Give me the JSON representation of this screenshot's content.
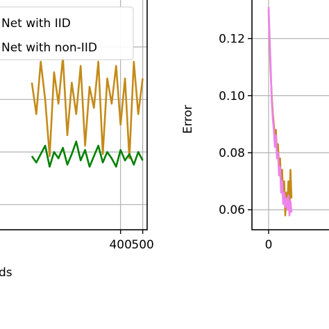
{
  "chart_data": [
    {
      "type": "line",
      "xlabel": "ds",
      "ylabel": "",
      "xlim": [
        -150,
        520
      ],
      "x_ticks": [
        400,
        500
      ],
      "grid": true,
      "legend_placement": "top-right",
      "series": [
        {
          "name": "Net with IID",
          "color": "#008000",
          "x": [
            0,
            20,
            40,
            60,
            80,
            100,
            120,
            140,
            160,
            180,
            200,
            220,
            240,
            260,
            280,
            300,
            320,
            340,
            360,
            380,
            400,
            420,
            440,
            460,
            480,
            500
          ],
          "y": [
            0.35,
            0.32,
            0.36,
            0.4,
            0.3,
            0.37,
            0.34,
            0.39,
            0.31,
            0.36,
            0.42,
            0.33,
            0.38,
            0.3,
            0.35,
            0.4,
            0.32,
            0.37,
            0.34,
            0.3,
            0.38,
            0.33,
            0.36,
            0.31,
            0.37,
            0.33
          ]
        },
        {
          "name": "Net with non-IID",
          "color": "#c48a18",
          "x": [
            0,
            20,
            40,
            60,
            80,
            100,
            120,
            140,
            160,
            180,
            200,
            220,
            240,
            260,
            280,
            300,
            320,
            340,
            360,
            380,
            400,
            420,
            440,
            460,
            480,
            500
          ],
          "y": [
            0.7,
            0.55,
            0.8,
            0.62,
            0.35,
            0.75,
            0.6,
            0.82,
            0.45,
            0.7,
            0.55,
            0.78,
            0.4,
            0.68,
            0.58,
            0.8,
            0.36,
            0.72,
            0.6,
            0.78,
            0.5,
            0.72,
            0.34,
            0.8,
            0.55,
            0.72
          ]
        }
      ]
    },
    {
      "type": "line",
      "xlabel": "",
      "ylabel": "Error",
      "xlim": [
        -8,
        32
      ],
      "ylim": [
        0.053,
        0.134
      ],
      "x_ticks": [
        0
      ],
      "y_ticks": [
        0.06,
        0.08,
        0.1,
        0.12
      ],
      "y_tick_labels": [
        "0.06",
        "0.08",
        "0.10",
        "0.12"
      ],
      "grid": true,
      "series": [
        {
          "name": "",
          "color": "#c48a18",
          "x": [
            0,
            0.5,
            1,
            1.5,
            2,
            2.5,
            3,
            3.5,
            4,
            4.5,
            5,
            5.5,
            6,
            6.5,
            7,
            7.5,
            8,
            8.5,
            9,
            9.5,
            10,
            10.5,
            11
          ],
          "y": [
            0.13,
            0.118,
            0.108,
            0.1,
            0.094,
            0.09,
            0.085,
            0.088,
            0.08,
            0.083,
            0.075,
            0.078,
            0.068,
            0.074,
            0.063,
            0.07,
            0.058,
            0.066,
            0.062,
            0.07,
            0.06,
            0.074,
            0.064
          ]
        },
        {
          "name": "",
          "color": "#ee82ee",
          "x": [
            0,
            0.5,
            1,
            1.5,
            2,
            2.5,
            3,
            3.5,
            4,
            4.5,
            5,
            5.5,
            6,
            6.5,
            7,
            7.5,
            8,
            8.5,
            9,
            9.5,
            10,
            10.5,
            11
          ],
          "y": [
            0.131,
            0.12,
            0.11,
            0.098,
            0.092,
            0.088,
            0.082,
            0.086,
            0.078,
            0.08,
            0.072,
            0.075,
            0.066,
            0.07,
            0.062,
            0.066,
            0.061,
            0.064,
            0.06,
            0.065,
            0.058,
            0.063,
            0.059
          ]
        }
      ]
    }
  ]
}
